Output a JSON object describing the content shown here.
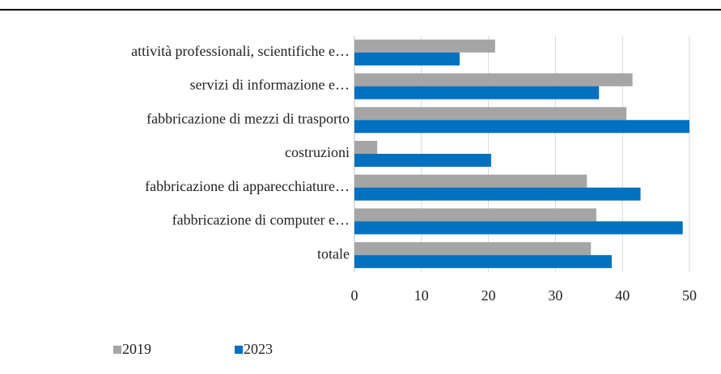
{
  "chart_data": {
    "type": "barh",
    "categories": [
      "attività professionali, scientifiche e…",
      "servizi di informazione e…",
      "fabbricazione di mezzi di trasporto",
      "costruzioni",
      "fabbricazione di apparecchiature…",
      "fabbricazione di computer e…",
      "totale"
    ],
    "series": [
      {
        "name": "2019",
        "color": "#a5a5a5",
        "values": [
          21.0,
          41.5,
          40.6,
          3.4,
          34.7,
          36.1,
          35.3
        ]
      },
      {
        "name": "2023",
        "color": "#0070c0",
        "values": [
          15.7,
          36.5,
          50.0,
          20.4,
          42.7,
          49.0,
          38.4
        ]
      }
    ],
    "xlim": [
      0,
      50
    ],
    "xticks": [
      0,
      10,
      20,
      30,
      40,
      50
    ],
    "grid": true
  }
}
